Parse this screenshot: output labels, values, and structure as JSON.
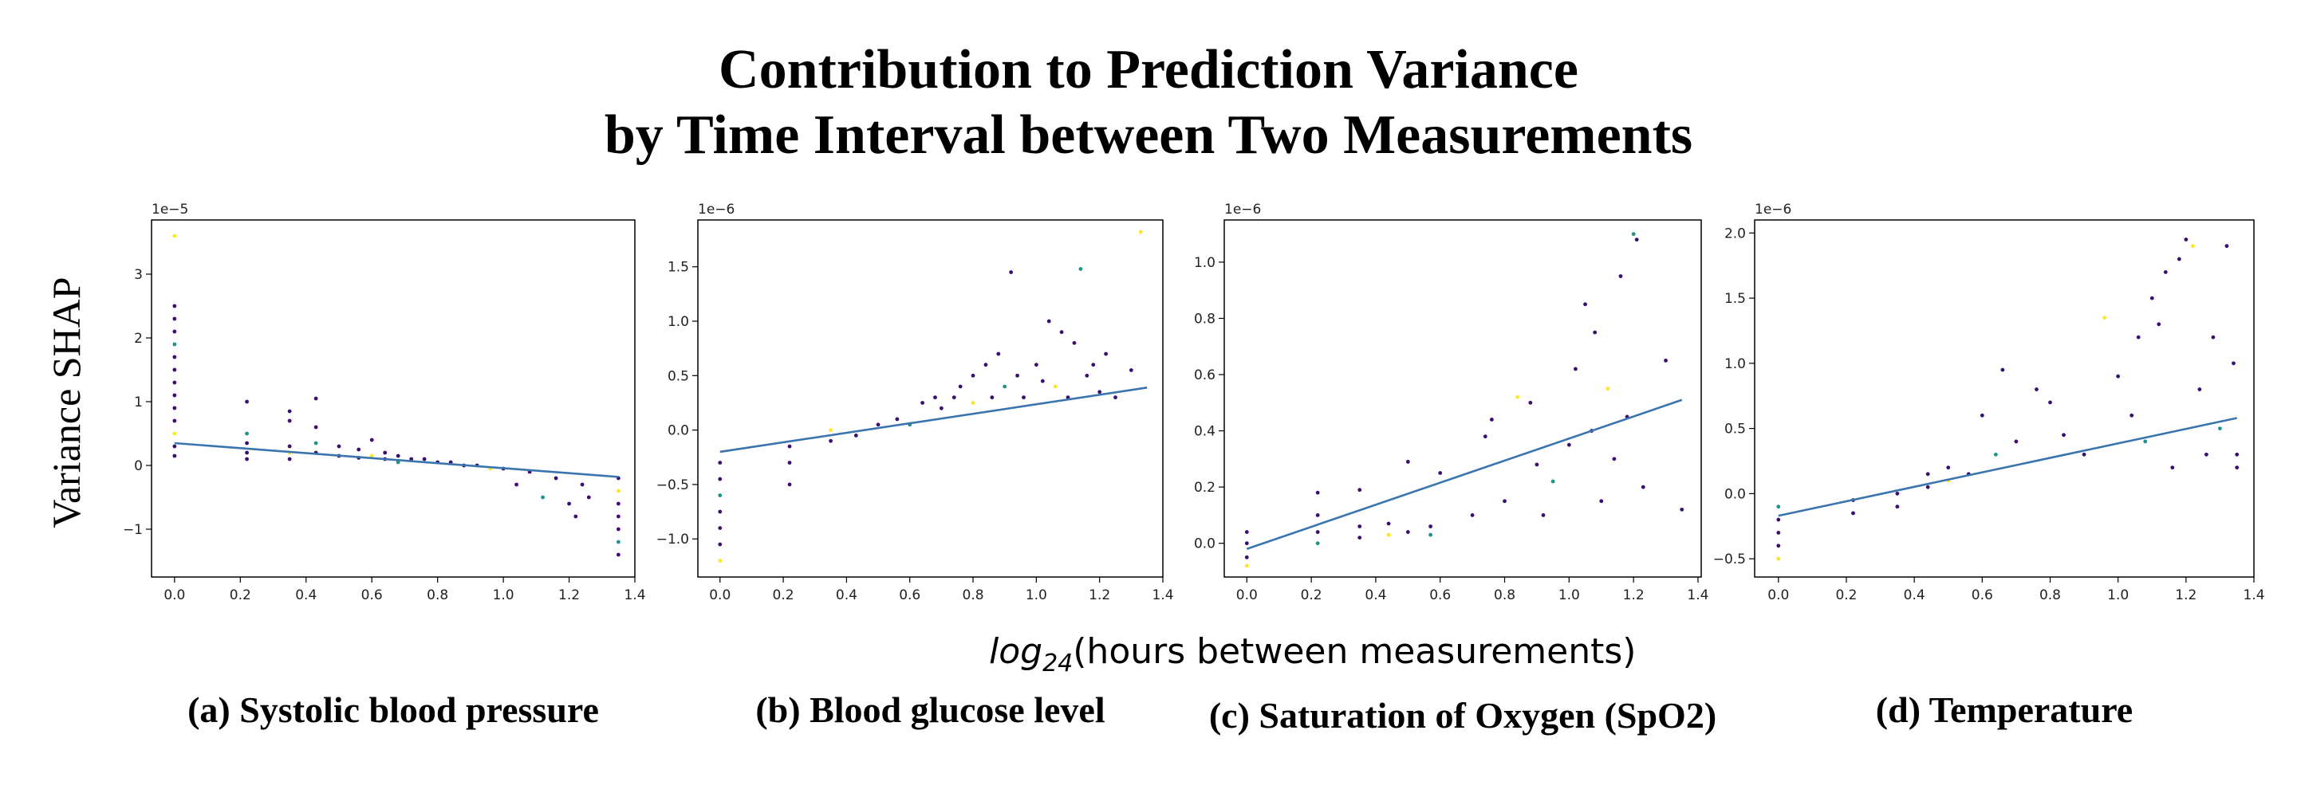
{
  "figure": {
    "title_line1": "Contribution to Prediction Variance",
    "title_line2": "by Time Interval between Two Measurements",
    "ylabel": "Variance SHAP",
    "xlabel_log": "log",
    "xlabel_sub": "24",
    "xlabel_rest": "(hours between measurements)"
  },
  "colors": {
    "fit": "#3b75af",
    "dot_dark": "#3b0f70",
    "dot_mid": "#21918c",
    "dot_light": "#fde725"
  },
  "chart_data": [
    {
      "type": "scatter",
      "caption": "(a) Systolic blood pressure",
      "offset_label": "1e−5",
      "xlim": [
        -0.07,
        1.4
      ],
      "ylim": [
        -1.75,
        3.85
      ],
      "xticks": [
        0.0,
        0.2,
        0.4,
        0.6,
        0.8,
        1.0,
        1.2,
        1.4
      ],
      "xtick_labels": [
        "0.0",
        "0.2",
        "0.4",
        "0.6",
        "0.8",
        "1.0",
        "1.2",
        "1.4"
      ],
      "yticks": [
        -1,
        0,
        1,
        2,
        3
      ],
      "ytick_labels": [
        "−1",
        "0",
        "1",
        "2",
        "3"
      ],
      "fit_line": [
        [
          0.0,
          0.35
        ],
        [
          1.35,
          -0.18
        ]
      ],
      "scatter_points": [
        [
          0.0,
          3.6
        ],
        [
          0.0,
          2.5
        ],
        [
          0.0,
          2.3
        ],
        [
          0.0,
          2.1
        ],
        [
          0.0,
          1.9
        ],
        [
          0.0,
          1.7
        ],
        [
          0.0,
          1.5
        ],
        [
          0.0,
          1.3
        ],
        [
          0.0,
          1.1
        ],
        [
          0.0,
          0.9
        ],
        [
          0.0,
          0.7
        ],
        [
          0.0,
          0.5
        ],
        [
          0.0,
          0.3
        ],
        [
          0.0,
          0.15
        ],
        [
          0.22,
          1.0
        ],
        [
          0.22,
          0.5
        ],
        [
          0.22,
          0.35
        ],
        [
          0.22,
          0.2
        ],
        [
          0.22,
          0.1
        ],
        [
          0.35,
          0.85
        ],
        [
          0.35,
          0.7
        ],
        [
          0.35,
          0.3
        ],
        [
          0.35,
          0.2
        ],
        [
          0.35,
          0.1
        ],
        [
          0.43,
          1.05
        ],
        [
          0.43,
          0.6
        ],
        [
          0.43,
          0.35
        ],
        [
          0.43,
          0.2
        ],
        [
          0.5,
          0.3
        ],
        [
          0.5,
          0.15
        ],
        [
          0.56,
          0.25
        ],
        [
          0.56,
          0.12
        ],
        [
          0.6,
          0.4
        ],
        [
          0.6,
          0.15
        ],
        [
          0.64,
          0.2
        ],
        [
          0.64,
          0.1
        ],
        [
          0.68,
          0.15
        ],
        [
          0.68,
          0.05
        ],
        [
          0.72,
          0.1
        ],
        [
          0.76,
          0.1
        ],
        [
          0.8,
          0.05
        ],
        [
          0.84,
          0.05
        ],
        [
          0.88,
          0.0
        ],
        [
          0.92,
          0.0
        ],
        [
          0.96,
          -0.05
        ],
        [
          1.0,
          -0.05
        ],
        [
          1.04,
          -0.3
        ],
        [
          1.08,
          -0.1
        ],
        [
          1.12,
          -0.5
        ],
        [
          1.16,
          -0.2
        ],
        [
          1.2,
          -0.6
        ],
        [
          1.22,
          -0.8
        ],
        [
          1.24,
          -0.3
        ],
        [
          1.26,
          -0.5
        ],
        [
          1.35,
          -0.2
        ],
        [
          1.35,
          -0.4
        ],
        [
          1.35,
          -0.6
        ],
        [
          1.35,
          -0.8
        ],
        [
          1.35,
          -1.0
        ],
        [
          1.35,
          -1.2
        ],
        [
          1.35,
          -1.4
        ]
      ]
    },
    {
      "type": "scatter",
      "caption": "(b) Blood glucose level",
      "offset_label": "1e−6",
      "xlim": [
        -0.07,
        1.4
      ],
      "ylim": [
        -1.35,
        1.93
      ],
      "xticks": [
        0.0,
        0.2,
        0.4,
        0.6,
        0.8,
        1.0,
        1.2,
        1.4
      ],
      "xtick_labels": [
        "0.0",
        "0.2",
        "0.4",
        "0.6",
        "0.8",
        "1.0",
        "1.2",
        "1.4"
      ],
      "yticks": [
        -1.0,
        -0.5,
        0.0,
        0.5,
        1.0,
        1.5
      ],
      "ytick_labels": [
        "−1.0",
        "−0.5",
        "0.0",
        "0.5",
        "1.0",
        "1.5"
      ],
      "fit_line": [
        [
          0.0,
          -0.2
        ],
        [
          1.35,
          0.39
        ]
      ],
      "scatter_points": [
        [
          0.0,
          -1.2
        ],
        [
          0.0,
          -1.05
        ],
        [
          0.0,
          -0.9
        ],
        [
          0.0,
          -0.75
        ],
        [
          0.0,
          -0.6
        ],
        [
          0.0,
          -0.45
        ],
        [
          0.0,
          -0.3
        ],
        [
          0.22,
          -0.5
        ],
        [
          0.22,
          -0.3
        ],
        [
          0.22,
          -0.15
        ],
        [
          0.35,
          -0.1
        ],
        [
          0.35,
          0.0
        ],
        [
          0.43,
          -0.05
        ],
        [
          0.5,
          0.05
        ],
        [
          0.56,
          0.1
        ],
        [
          0.6,
          0.05
        ],
        [
          0.64,
          0.25
        ],
        [
          0.68,
          0.3
        ],
        [
          0.7,
          0.2
        ],
        [
          0.74,
          0.3
        ],
        [
          0.76,
          0.4
        ],
        [
          0.8,
          0.5
        ],
        [
          0.8,
          0.25
        ],
        [
          0.84,
          0.6
        ],
        [
          0.86,
          0.3
        ],
        [
          0.88,
          0.7
        ],
        [
          0.9,
          0.4
        ],
        [
          0.92,
          1.45
        ],
        [
          0.94,
          0.5
        ],
        [
          0.96,
          0.3
        ],
        [
          1.0,
          0.6
        ],
        [
          1.02,
          0.45
        ],
        [
          1.04,
          1.0
        ],
        [
          1.06,
          0.4
        ],
        [
          1.08,
          0.9
        ],
        [
          1.1,
          0.3
        ],
        [
          1.12,
          0.8
        ],
        [
          1.14,
          1.48
        ],
        [
          1.16,
          0.5
        ],
        [
          1.18,
          0.6
        ],
        [
          1.2,
          0.35
        ],
        [
          1.22,
          0.7
        ],
        [
          1.25,
          0.3
        ],
        [
          1.3,
          0.55
        ],
        [
          1.33,
          1.82
        ]
      ]
    },
    {
      "type": "scatter",
      "caption": "(c) Saturation of Oxygen (SpO2)",
      "offset_label": "1e−6",
      "xlim": [
        -0.07,
        1.41
      ],
      "ylim": [
        -0.12,
        1.15
      ],
      "xticks": [
        0.0,
        0.2,
        0.4,
        0.6,
        0.8,
        1.0,
        1.2,
        1.4
      ],
      "xtick_labels": [
        "0.0",
        "0.2",
        "0.4",
        "0.6",
        "0.8",
        "1.0",
        "1.2",
        "1.4"
      ],
      "yticks": [
        0.0,
        0.2,
        0.4,
        0.6,
        0.8,
        1.0
      ],
      "ytick_labels": [
        "0.0",
        "0.2",
        "0.4",
        "0.6",
        "0.8",
        "1.0"
      ],
      "fit_line": [
        [
          0.0,
          -0.02
        ],
        [
          1.35,
          0.51
        ]
      ],
      "scatter_points": [
        [
          0.0,
          -0.08
        ],
        [
          0.0,
          -0.05
        ],
        [
          0.0,
          0.0
        ],
        [
          0.0,
          0.04
        ],
        [
          0.22,
          0.0
        ],
        [
          0.22,
          0.04
        ],
        [
          0.22,
          0.1
        ],
        [
          0.22,
          0.18
        ],
        [
          0.35,
          0.02
        ],
        [
          0.35,
          0.06
        ],
        [
          0.35,
          0.19
        ],
        [
          0.44,
          0.03
        ],
        [
          0.44,
          0.07
        ],
        [
          0.5,
          0.04
        ],
        [
          0.5,
          0.29
        ],
        [
          0.57,
          0.03
        ],
        [
          0.57,
          0.06
        ],
        [
          0.6,
          0.25
        ],
        [
          0.7,
          0.1
        ],
        [
          0.74,
          0.38
        ],
        [
          0.76,
          0.44
        ],
        [
          0.8,
          0.15
        ],
        [
          0.84,
          0.52
        ],
        [
          0.88,
          0.5
        ],
        [
          0.9,
          0.28
        ],
        [
          0.92,
          0.1
        ],
        [
          0.95,
          0.22
        ],
        [
          1.0,
          0.35
        ],
        [
          1.02,
          0.62
        ],
        [
          1.05,
          0.85
        ],
        [
          1.07,
          0.4
        ],
        [
          1.08,
          0.75
        ],
        [
          1.1,
          0.15
        ],
        [
          1.12,
          0.55
        ],
        [
          1.14,
          0.3
        ],
        [
          1.16,
          0.95
        ],
        [
          1.18,
          0.45
        ],
        [
          1.2,
          1.1
        ],
        [
          1.21,
          1.08
        ],
        [
          1.23,
          0.2
        ],
        [
          1.3,
          0.65
        ],
        [
          1.35,
          0.12
        ]
      ]
    },
    {
      "type": "scatter",
      "caption": "(d) Temperature",
      "offset_label": "1e−6",
      "xlim": [
        -0.07,
        1.4
      ],
      "ylim": [
        -0.64,
        2.1
      ],
      "xticks": [
        0.0,
        0.2,
        0.4,
        0.6,
        0.8,
        1.0,
        1.2,
        1.4
      ],
      "xtick_labels": [
        "0.0",
        "0.2",
        "0.4",
        "0.6",
        "0.8",
        "1.0",
        "1.2",
        "1.4"
      ],
      "yticks": [
        -0.5,
        0.0,
        0.5,
        1.0,
        1.5,
        2.0
      ],
      "ytick_labels": [
        "−0.5",
        "0.0",
        "0.5",
        "1.0",
        "1.5",
        "2.0"
      ],
      "fit_line": [
        [
          0.0,
          -0.17
        ],
        [
          1.35,
          0.58
        ]
      ],
      "scatter_points": [
        [
          0.0,
          -0.5
        ],
        [
          0.0,
          -0.4
        ],
        [
          0.0,
          -0.3
        ],
        [
          0.0,
          -0.2
        ],
        [
          0.0,
          -0.1
        ],
        [
          0.22,
          -0.15
        ],
        [
          0.22,
          -0.05
        ],
        [
          0.35,
          -0.1
        ],
        [
          0.35,
          0.0
        ],
        [
          0.44,
          0.05
        ],
        [
          0.44,
          0.15
        ],
        [
          0.5,
          0.1
        ],
        [
          0.5,
          0.2
        ],
        [
          0.56,
          0.15
        ],
        [
          0.6,
          0.6
        ],
        [
          0.64,
          0.3
        ],
        [
          0.66,
          0.95
        ],
        [
          0.7,
          0.4
        ],
        [
          0.76,
          0.8
        ],
        [
          0.8,
          0.7
        ],
        [
          0.84,
          0.45
        ],
        [
          0.9,
          0.3
        ],
        [
          0.96,
          1.35
        ],
        [
          1.0,
          0.9
        ],
        [
          1.04,
          0.6
        ],
        [
          1.06,
          1.2
        ],
        [
          1.08,
          0.4
        ],
        [
          1.1,
          1.5
        ],
        [
          1.12,
          1.3
        ],
        [
          1.14,
          1.7
        ],
        [
          1.16,
          0.2
        ],
        [
          1.18,
          1.8
        ],
        [
          1.2,
          1.95
        ],
        [
          1.22,
          1.9
        ],
        [
          1.24,
          0.8
        ],
        [
          1.26,
          0.3
        ],
        [
          1.28,
          1.2
        ],
        [
          1.3,
          0.5
        ],
        [
          1.32,
          1.9
        ],
        [
          1.34,
          1.0
        ],
        [
          1.35,
          0.2
        ],
        [
          1.35,
          0.3
        ]
      ]
    }
  ]
}
